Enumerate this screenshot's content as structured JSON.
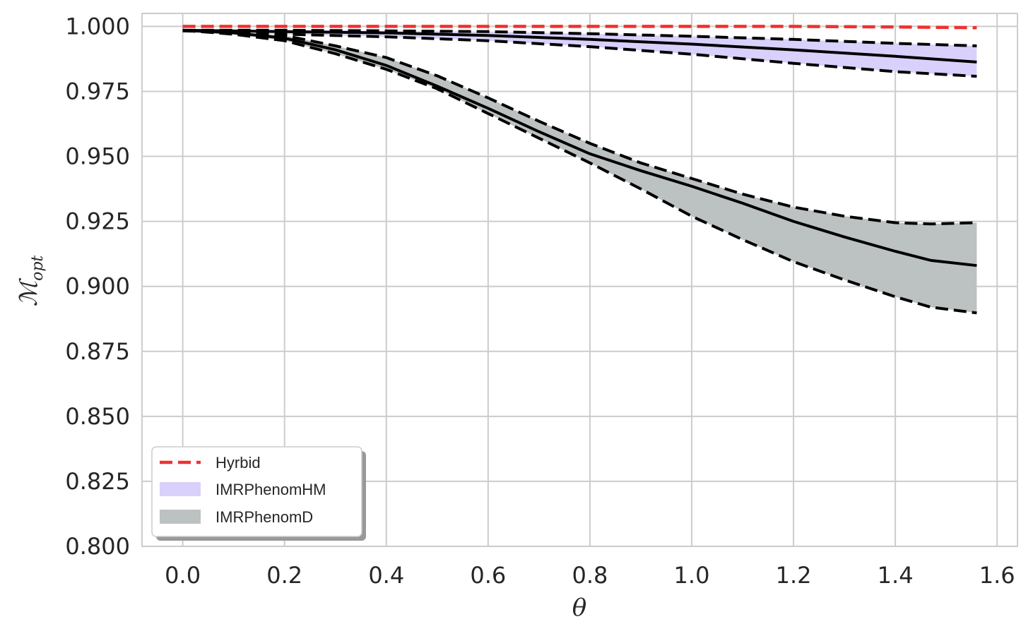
{
  "chart_data": {
    "type": "line",
    "xlabel": "θ",
    "ylabel_main": "ℳ",
    "ylabel_sub": "opt",
    "xlim": [
      -0.08,
      1.64
    ],
    "ylim": [
      0.8,
      1.005
    ],
    "xticks": [
      "0.0",
      "0.2",
      "0.4",
      "0.6",
      "0.8",
      "1.0",
      "1.2",
      "1.4",
      "1.6"
    ],
    "xtick_values": [
      0.0,
      0.2,
      0.4,
      0.6,
      0.8,
      1.0,
      1.2,
      1.4,
      1.6
    ],
    "yticks": [
      "0.800",
      "0.825",
      "0.850",
      "0.875",
      "0.900",
      "0.925",
      "0.950",
      "0.975",
      "1.000"
    ],
    "ytick_values": [
      0.8,
      0.825,
      0.85,
      0.875,
      0.9,
      0.925,
      0.95,
      0.975,
      1.0
    ],
    "grid": true,
    "legend_position": "lower-left",
    "series": [
      {
        "name": "Hyrbid",
        "kind": "line-dashed",
        "color": "#f03030",
        "x": [
          0.0,
          0.2,
          0.4,
          0.6,
          0.8,
          1.0,
          1.2,
          1.4,
          1.56
        ],
        "y": [
          1.0,
          1.0,
          1.0,
          1.0,
          1.0,
          1.0,
          1.0,
          0.9998,
          0.9995
        ]
      },
      {
        "name": "IMRPhenomHM",
        "kind": "band",
        "color": "#d9d0fb",
        "x": [
          0.0,
          0.2,
          0.4,
          0.6,
          0.8,
          1.0,
          1.2,
          1.4,
          1.56
        ],
        "median": [
          0.9985,
          0.998,
          0.9975,
          0.9965,
          0.995,
          0.9932,
          0.991,
          0.9885,
          0.9863
        ],
        "upper": [
          0.9985,
          0.9985,
          0.9983,
          0.998,
          0.9972,
          0.9962,
          0.995,
          0.9935,
          0.9925
        ],
        "lower": [
          0.9983,
          0.997,
          0.996,
          0.9945,
          0.9922,
          0.9893,
          0.9858,
          0.9826,
          0.9808
        ]
      },
      {
        "name": "IMRPhenomD",
        "kind": "band",
        "color": "#bcc1c2",
        "x": [
          0.0,
          0.1,
          0.2,
          0.3,
          0.4,
          0.5,
          0.6,
          0.7,
          0.8,
          0.9,
          1.0,
          1.1,
          1.2,
          1.3,
          1.4,
          1.47,
          1.56
        ],
        "median": [
          0.9985,
          0.9975,
          0.9955,
          0.991,
          0.985,
          0.977,
          0.9685,
          0.9595,
          0.951,
          0.9445,
          0.9385,
          0.932,
          0.925,
          0.919,
          0.9135,
          0.91,
          0.908
        ],
        "upper": [
          0.9985,
          0.998,
          0.9965,
          0.9925,
          0.988,
          0.981,
          0.9725,
          0.9635,
          0.955,
          0.9475,
          0.9415,
          0.9355,
          0.9305,
          0.927,
          0.9245,
          0.924,
          0.9245
        ],
        "lower": [
          0.9985,
          0.997,
          0.9945,
          0.9895,
          0.9835,
          0.976,
          0.9665,
          0.957,
          0.9475,
          0.9375,
          0.927,
          0.918,
          0.9095,
          0.9025,
          0.896,
          0.892,
          0.8898
        ]
      }
    ]
  }
}
